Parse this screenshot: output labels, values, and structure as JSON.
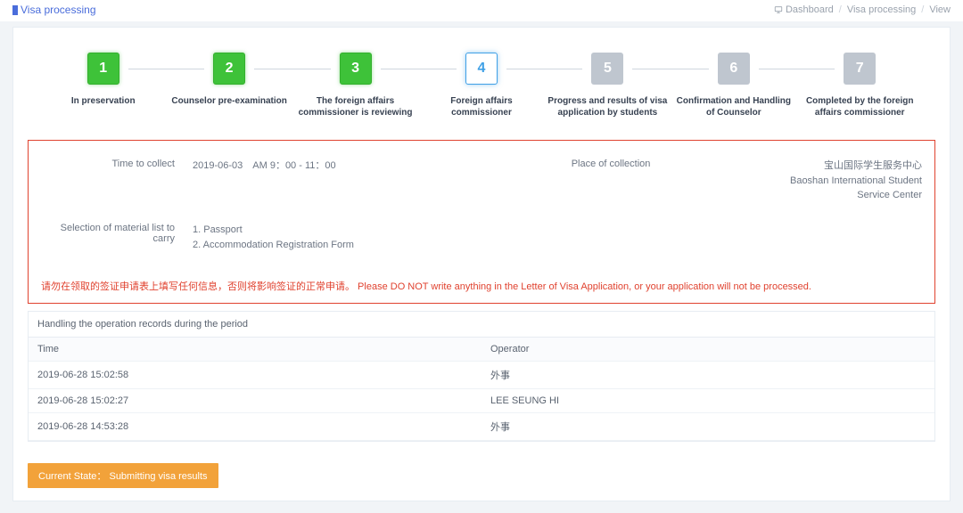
{
  "header": {
    "title": "Visa processing"
  },
  "breadcrumb": {
    "dashboard": "Dashboard",
    "mid": "Visa processing",
    "leaf": "View"
  },
  "wizard": {
    "steps": [
      {
        "num": "1",
        "label": "In preservation",
        "state": "done"
      },
      {
        "num": "2",
        "label": "Counselor pre-examination",
        "state": "done"
      },
      {
        "num": "3",
        "label": "The foreign affairs commissioner is reviewing",
        "state": "done"
      },
      {
        "num": "4",
        "label": "Foreign affairs commissioner",
        "state": "current"
      },
      {
        "num": "5",
        "label": "Progress and results of visa application by students",
        "state": "todo"
      },
      {
        "num": "6",
        "label": "Confirmation and Handling of Counselor",
        "state": "todo"
      },
      {
        "num": "7",
        "label": "Completed by the foreign affairs commissioner",
        "state": "todo"
      }
    ],
    "colors": {
      "done": "#3ec239",
      "current_border": "#3fa0e6",
      "todo": "#bfc6cf"
    }
  },
  "info": {
    "time_to_collect_label": "Time to collect",
    "time_to_collect_value": "2019-06-03 AM 9：00 - 11：00",
    "place_label": "Place of collection",
    "place_value_cn": "宝山国际学生服务中心",
    "place_value_en1": "Baoshan International Student",
    "place_value_en2": "Service Center",
    "materials_label": "Selection of material list to carry",
    "materials_1": "1. Passport",
    "materials_2": "2. Accommodation Registration Form",
    "warning": "请勿在领取的签证申请表上填写任何信息，否则将影响签证的正常申请。 Please DO NOT write anything in the Letter of Visa Application, or your application will not be processed.",
    "border_color": "#e0422f"
  },
  "records": {
    "title": "Handling the operation records during the period",
    "col_time": "Time",
    "col_operator": "Operator",
    "rows": [
      {
        "time": "2019-06-28 15:02:58",
        "operator": "外事"
      },
      {
        "time": "2019-06-28 15:02:27",
        "operator": "LEE SEUNG HI"
      },
      {
        "time": "2019-06-28 14:53:28",
        "operator": "外事"
      }
    ]
  },
  "state_badge": {
    "text": "Current State： Submitting visa results",
    "background": "#f2a23a"
  }
}
